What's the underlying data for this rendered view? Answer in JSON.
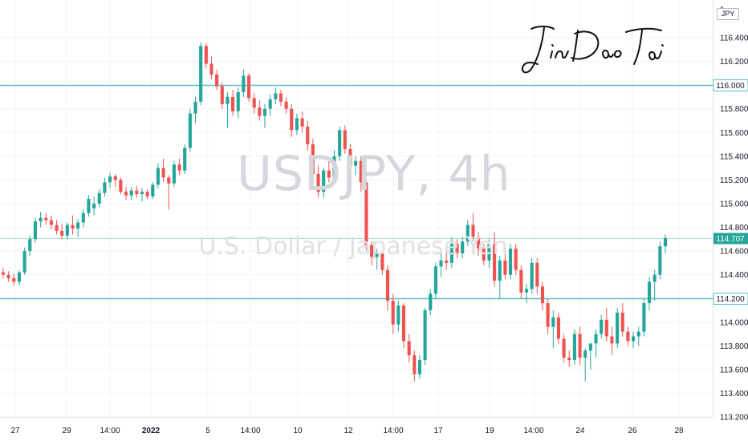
{
  "chart_data": {
    "type": "candlestick",
    "symbol": "USDJPY, 4h",
    "description": "U.S. Dollar / Japanese Yen",
    "currency": "JPY",
    "signature_text": "JinDaoTai",
    "y_axis": {
      "ticks": [
        "116.400",
        "116.200",
        "116.000",
        "115.800",
        "115.600",
        "115.400",
        "115.200",
        "115.000",
        "114.800",
        "114.600",
        "114.400",
        "114.200",
        "114.000",
        "113.800",
        "113.600",
        "113.400",
        "113.200"
      ],
      "range": [
        113.2,
        116.62
      ],
      "partial_top_label": "1"
    },
    "x_axis": {
      "ticks": [
        "27",
        "29",
        "14:00",
        "2022",
        "5",
        "14:00",
        "10",
        "12",
        "14:00",
        "17",
        "19",
        "14:00",
        "24",
        "26",
        "28"
      ]
    },
    "horizontal_levels": [
      {
        "value": 116.0,
        "label": "116.000",
        "style": "solid"
      },
      {
        "value": 114.2,
        "label": "114.200",
        "style": "solid"
      },
      {
        "value": 114.707,
        "label": "114.707",
        "style": "price"
      }
    ],
    "last_price": "114.707",
    "colors": {
      "up": "#26a69a",
      "down": "#ef5350",
      "level": "#5cbfc8",
      "price_tag": "#26a69a"
    },
    "candles": [
      [
        114.42,
        114.46,
        114.37,
        114.4
      ],
      [
        114.4,
        114.43,
        114.34,
        114.37
      ],
      [
        114.37,
        114.41,
        114.31,
        114.34
      ],
      [
        114.34,
        114.44,
        114.31,
        114.42
      ],
      [
        114.42,
        114.63,
        114.4,
        114.6
      ],
      [
        114.6,
        114.73,
        114.56,
        114.7
      ],
      [
        114.7,
        114.88,
        114.67,
        114.85
      ],
      [
        114.85,
        114.93,
        114.8,
        114.88
      ],
      [
        114.88,
        114.92,
        114.82,
        114.86
      ],
      [
        114.86,
        114.9,
        114.78,
        114.82
      ],
      [
        114.82,
        114.86,
        114.74,
        114.77
      ],
      [
        114.77,
        114.83,
        114.7,
        114.73
      ],
      [
        114.73,
        114.84,
        114.7,
        114.82
      ],
      [
        114.82,
        114.9,
        114.74,
        114.79
      ],
      [
        114.79,
        114.87,
        114.72,
        114.84
      ],
      [
        114.84,
        114.95,
        114.8,
        114.92
      ],
      [
        114.92,
        115.07,
        114.89,
        115.04
      ],
      [
        114.96,
        115.06,
        114.9,
        115.0
      ],
      [
        115.0,
        115.12,
        114.97,
        115.09
      ],
      [
        115.09,
        115.22,
        115.06,
        115.18
      ],
      [
        115.18,
        115.26,
        115.13,
        115.23
      ],
      [
        115.23,
        115.25,
        115.14,
        115.2
      ],
      [
        115.2,
        115.22,
        115.08,
        115.1
      ],
      [
        115.1,
        115.14,
        115.03,
        115.07
      ],
      [
        115.07,
        115.14,
        115.03,
        115.11
      ],
      [
        115.11,
        115.15,
        115.05,
        115.08
      ],
      [
        115.08,
        115.13,
        115.02,
        115.1
      ],
      [
        115.1,
        115.12,
        115.04,
        115.06
      ],
      [
        115.06,
        115.18,
        115.04,
        115.16
      ],
      [
        115.16,
        115.34,
        115.13,
        115.3
      ],
      [
        115.3,
        115.38,
        115.18,
        115.22
      ],
      [
        115.22,
        115.24,
        114.95,
        115.17
      ],
      [
        115.17,
        115.36,
        115.14,
        115.33
      ],
      [
        115.33,
        115.38,
        115.24,
        115.28
      ],
      [
        115.28,
        115.5,
        115.25,
        115.47
      ],
      [
        115.47,
        115.8,
        115.44,
        115.76
      ],
      [
        115.76,
        115.9,
        115.68,
        115.86
      ],
      [
        115.86,
        116.36,
        115.83,
        116.33
      ],
      [
        116.33,
        116.35,
        116.14,
        116.18
      ],
      [
        116.18,
        116.24,
        116.05,
        116.09
      ],
      [
        116.09,
        116.13,
        115.96,
        115.99
      ],
      [
        115.99,
        116.02,
        115.8,
        115.84
      ],
      [
        115.84,
        115.94,
        115.64,
        115.9
      ],
      [
        115.9,
        115.96,
        115.74,
        115.78
      ],
      [
        115.78,
        115.98,
        115.72,
        115.94
      ],
      [
        115.94,
        116.13,
        115.9,
        116.08
      ],
      [
        116.08,
        116.1,
        115.86,
        115.89
      ],
      [
        115.89,
        115.93,
        115.76,
        115.81
      ],
      [
        115.81,
        115.87,
        115.7,
        115.74
      ],
      [
        115.74,
        115.84,
        115.64,
        115.8
      ],
      [
        115.8,
        115.92,
        115.74,
        115.88
      ],
      [
        115.88,
        115.98,
        115.84,
        115.93
      ],
      [
        115.93,
        115.96,
        115.82,
        115.86
      ],
      [
        115.86,
        115.9,
        115.76,
        115.8
      ],
      [
        115.8,
        115.84,
        115.56,
        115.62
      ],
      [
        115.62,
        115.76,
        115.58,
        115.72
      ],
      [
        115.72,
        115.78,
        115.6,
        115.65
      ],
      [
        115.65,
        115.7,
        115.45,
        115.5
      ],
      [
        115.5,
        115.55,
        115.2,
        115.25
      ],
      [
        115.25,
        115.32,
        115.05,
        115.1
      ],
      [
        115.1,
        115.3,
        115.05,
        115.28
      ],
      [
        115.28,
        115.36,
        115.18,
        115.22
      ],
      [
        115.22,
        115.45,
        115.2,
        115.4
      ],
      [
        115.4,
        115.65,
        115.36,
        115.62
      ],
      [
        115.62,
        115.66,
        115.42,
        115.46
      ],
      [
        115.46,
        115.5,
        115.28,
        115.32
      ],
      [
        115.32,
        115.4,
        115.24,
        115.36
      ],
      [
        115.36,
        115.4,
        115.1,
        115.18
      ],
      [
        115.18,
        115.2,
        114.6,
        114.65
      ],
      [
        114.65,
        114.68,
        114.48,
        114.55
      ],
      [
        114.55,
        114.62,
        114.44,
        114.58
      ],
      [
        114.58,
        114.6,
        114.4,
        114.44
      ],
      [
        114.44,
        114.48,
        114.1,
        114.18
      ],
      [
        114.18,
        114.24,
        113.9,
        113.98
      ],
      [
        113.98,
        114.18,
        113.92,
        114.14
      ],
      [
        114.14,
        114.16,
        113.78,
        113.84
      ],
      [
        113.84,
        113.9,
        113.66,
        113.72
      ],
      [
        113.72,
        113.76,
        113.5,
        113.56
      ],
      [
        113.56,
        113.72,
        113.52,
        113.68
      ],
      [
        113.68,
        114.12,
        113.64,
        114.1
      ],
      [
        114.1,
        114.28,
        114.06,
        114.24
      ],
      [
        114.24,
        114.5,
        114.2,
        114.47
      ],
      [
        114.47,
        114.58,
        114.38,
        114.52
      ],
      [
        114.52,
        114.6,
        114.44,
        114.5
      ],
      [
        114.5,
        114.72,
        114.46,
        114.66
      ],
      [
        114.66,
        114.7,
        114.54,
        114.58
      ],
      [
        114.58,
        114.72,
        114.54,
        114.68
      ],
      [
        114.68,
        114.86,
        114.64,
        114.82
      ],
      [
        114.82,
        114.92,
        114.68,
        114.72
      ],
      [
        114.72,
        114.76,
        114.56,
        114.62
      ],
      [
        114.62,
        114.66,
        114.48,
        114.52
      ],
      [
        114.52,
        114.7,
        114.46,
        114.66
      ],
      [
        114.66,
        114.76,
        114.3,
        114.35
      ],
      [
        114.35,
        114.56,
        114.2,
        114.52
      ],
      [
        114.52,
        114.58,
        114.36,
        114.4
      ],
      [
        114.4,
        114.66,
        114.36,
        114.62
      ],
      [
        114.62,
        114.66,
        114.4,
        114.44
      ],
      [
        114.44,
        114.48,
        114.2,
        114.25
      ],
      [
        114.25,
        114.32,
        114.16,
        114.28
      ],
      [
        114.28,
        114.54,
        114.24,
        114.5
      ],
      [
        114.5,
        114.54,
        114.24,
        114.3
      ],
      [
        114.3,
        114.34,
        114.1,
        114.16
      ],
      [
        114.16,
        114.2,
        113.9,
        113.96
      ],
      [
        113.96,
        114.1,
        113.78,
        114.04
      ],
      [
        114.04,
        114.08,
        113.82,
        113.86
      ],
      [
        113.86,
        113.9,
        113.66,
        113.7
      ],
      [
        113.7,
        113.76,
        113.62,
        113.68
      ],
      [
        113.68,
        113.94,
        113.64,
        113.9
      ],
      [
        113.9,
        113.96,
        113.64,
        113.7
      ],
      [
        113.7,
        113.78,
        113.5,
        113.76
      ],
      [
        113.76,
        113.82,
        113.6,
        113.82
      ],
      [
        113.82,
        113.94,
        113.7,
        113.9
      ],
      [
        113.9,
        114.06,
        113.86,
        114.02
      ],
      [
        114.02,
        114.12,
        113.84,
        113.88
      ],
      [
        113.88,
        113.96,
        113.72,
        113.82
      ],
      [
        113.82,
        114.12,
        113.78,
        114.08
      ],
      [
        114.08,
        114.16,
        113.88,
        113.92
      ],
      [
        113.92,
        113.96,
        113.8,
        113.84
      ],
      [
        113.84,
        113.92,
        113.78,
        113.88
      ],
      [
        113.88,
        113.96,
        113.8,
        113.92
      ],
      [
        113.92,
        114.2,
        113.88,
        114.16
      ],
      [
        114.16,
        114.38,
        114.1,
        114.34
      ],
      [
        114.34,
        114.44,
        114.18,
        114.4
      ],
      [
        114.4,
        114.68,
        114.36,
        114.64
      ],
      [
        114.64,
        114.74,
        114.58,
        114.71
      ]
    ]
  }
}
